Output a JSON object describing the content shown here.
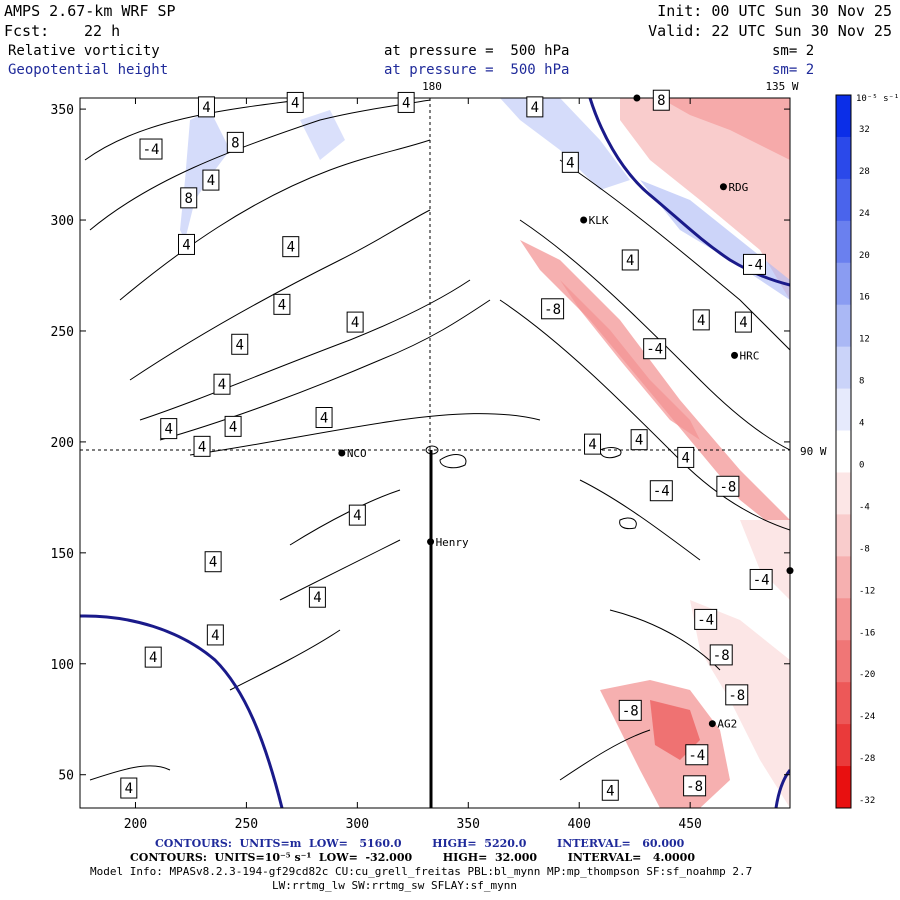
{
  "header": {
    "model_name": "AMPS 2.67-km WRF SP",
    "init_time": "Init: 00 UTC Sun 30 Nov 25",
    "forecast_label": "Fcst:",
    "forecast_hours": "22 h",
    "valid_time": "Valid: 22 UTC Sun 30 Nov 25",
    "field1_name": "Relative vorticity",
    "field1_level": "at pressure =  500 hPa",
    "field1_smooth": "sm= 2",
    "field2_name": "Geopotential height",
    "field2_level": "at pressure =  500 hPa",
    "field2_smooth": "sm= 2"
  },
  "map": {
    "longitude_labels": [
      "180",
      "135 W",
      "90 W"
    ],
    "stations": [
      {
        "name": "RDG",
        "x": 465,
        "y": 315
      },
      {
        "name": "KLK",
        "x": 402,
        "y": 300
      },
      {
        "name": "HRC",
        "x": 470,
        "y": 239
      },
      {
        "name": "NCO",
        "x": 293,
        "y": 195
      },
      {
        "name": "Henry",
        "x": 333,
        "y": 155
      },
      {
        "name": "AG2",
        "x": 460,
        "y": 73
      }
    ],
    "unlabeled_point": {
      "x": 426,
      "y": 355
    },
    "edge_point": {
      "x": 495,
      "y": 142
    },
    "contour_labels": [
      {
        "text": "-4",
        "x": 207,
        "y": 332
      },
      {
        "text": "4",
        "x": 232,
        "y": 351
      },
      {
        "text": "8",
        "x": 245,
        "y": 335
      },
      {
        "text": "4",
        "x": 272,
        "y": 353
      },
      {
        "text": "4",
        "x": 322,
        "y": 353
      },
      {
        "text": "4",
        "x": 380,
        "y": 351
      },
      {
        "text": "4",
        "x": 396,
        "y": 326
      },
      {
        "text": "8",
        "x": 437,
        "y": 354
      },
      {
        "text": "8",
        "x": 224,
        "y": 310
      },
      {
        "text": "4",
        "x": 234,
        "y": 318
      },
      {
        "text": "4",
        "x": 223,
        "y": 289
      },
      {
        "text": "4",
        "x": 270,
        "y": 288
      },
      {
        "text": "4",
        "x": 247,
        "y": 244
      },
      {
        "text": "4",
        "x": 266,
        "y": 262
      },
      {
        "text": "4",
        "x": 299,
        "y": 254
      },
      {
        "text": "4",
        "x": 239,
        "y": 226
      },
      {
        "text": "4",
        "x": 285,
        "y": 211
      },
      {
        "text": "4",
        "x": 215,
        "y": 206
      },
      {
        "text": "4",
        "x": 230,
        "y": 198
      },
      {
        "text": "4",
        "x": 244,
        "y": 207
      },
      {
        "text": "4",
        "x": 300,
        "y": 167
      },
      {
        "text": "4",
        "x": 235,
        "y": 146
      },
      {
        "text": "4",
        "x": 282,
        "y": 130
      },
      {
        "text": "4",
        "x": 236,
        "y": 113
      },
      {
        "text": "4",
        "x": 208,
        "y": 103
      },
      {
        "text": "4",
        "x": 197,
        "y": 44
      },
      {
        "text": "-8",
        "x": 388,
        "y": 260
      },
      {
        "text": "4",
        "x": 423,
        "y": 282
      },
      {
        "text": "-4",
        "x": 479,
        "y": 280
      },
      {
        "text": "4",
        "x": 455,
        "y": 255
      },
      {
        "text": "4",
        "x": 474,
        "y": 254
      },
      {
        "text": "-4",
        "x": 434,
        "y": 242
      },
      {
        "text": "4",
        "x": 406,
        "y": 199
      },
      {
        "text": "4",
        "x": 427,
        "y": 201
      },
      {
        "text": "4",
        "x": 448,
        "y": 193
      },
      {
        "text": "-8",
        "x": 467,
        "y": 180
      },
      {
        "text": "-4",
        "x": 437,
        "y": 178
      },
      {
        "text": "-4",
        "x": 482,
        "y": 138
      },
      {
        "text": "-4",
        "x": 457,
        "y": 120
      },
      {
        "text": "-8",
        "x": 464,
        "y": 104
      },
      {
        "text": "-8",
        "x": 471,
        "y": 86
      },
      {
        "text": "-8",
        "x": 423,
        "y": 79
      },
      {
        "text": "-4",
        "x": 453,
        "y": 59
      },
      {
        "text": "-8",
        "x": 452,
        "y": 45
      },
      {
        "text": "4",
        "x": 414,
        "y": 43
      }
    ]
  },
  "colorbar": {
    "unit_label": "10⁻⁵ s⁻¹",
    "levels": [
      "32",
      "28",
      "24",
      "20",
      "16",
      "12",
      "8",
      "4",
      "0",
      "-4",
      "-8",
      "-12",
      "-16",
      "-20",
      "-24",
      "-28",
      "-32"
    ],
    "colors": [
      "#0b2ee8",
      "#2b49ea",
      "#4a64ec",
      "#6a80ef",
      "#8a9cf2",
      "#aab8f5",
      "#cad3f9",
      "#e6eafc",
      "#ffffff",
      "#fce6e6",
      "#f9cccc",
      "#f6b0b0",
      "#f39393",
      "#f07676",
      "#ed5858",
      "#ea3a3a",
      "#e81010"
    ]
  },
  "chart_data": {
    "type": "map",
    "title": "Relative vorticity / Geopotential height at 500 hPa",
    "x_ticks": [
      200,
      250,
      300,
      350,
      400,
      450
    ],
    "y_ticks": [
      50,
      100,
      150,
      200,
      250,
      300,
      350
    ],
    "xlim": [
      175,
      495
    ],
    "ylim": [
      35,
      355
    ],
    "reference_lines": {
      "vertical_x": 333,
      "horizontal_y": 195
    },
    "colorbar_range": [
      -32,
      32
    ]
  },
  "footer": {
    "contours_height": "CONTOURS:  UNITS=m  LOW=   5160.0        HIGH=  5220.0        INTERVAL=   60.000",
    "contours_vort": "CONTOURS:  UNITS=10⁻⁵ s⁻¹  LOW=  -32.000        HIGH=  32.000        INTERVAL=   4.0000",
    "model_info": "Model Info: MPASv8.2.3-194-gf29cd82c CU:cu_grell_freitas PBL:bl_mynn MP:mp_thompson SF:sf_noahmp 2.7",
    "model_info2": "LW:rrtmg_lw SW:rrtmg_sw SFLAY:sf_mynn"
  }
}
